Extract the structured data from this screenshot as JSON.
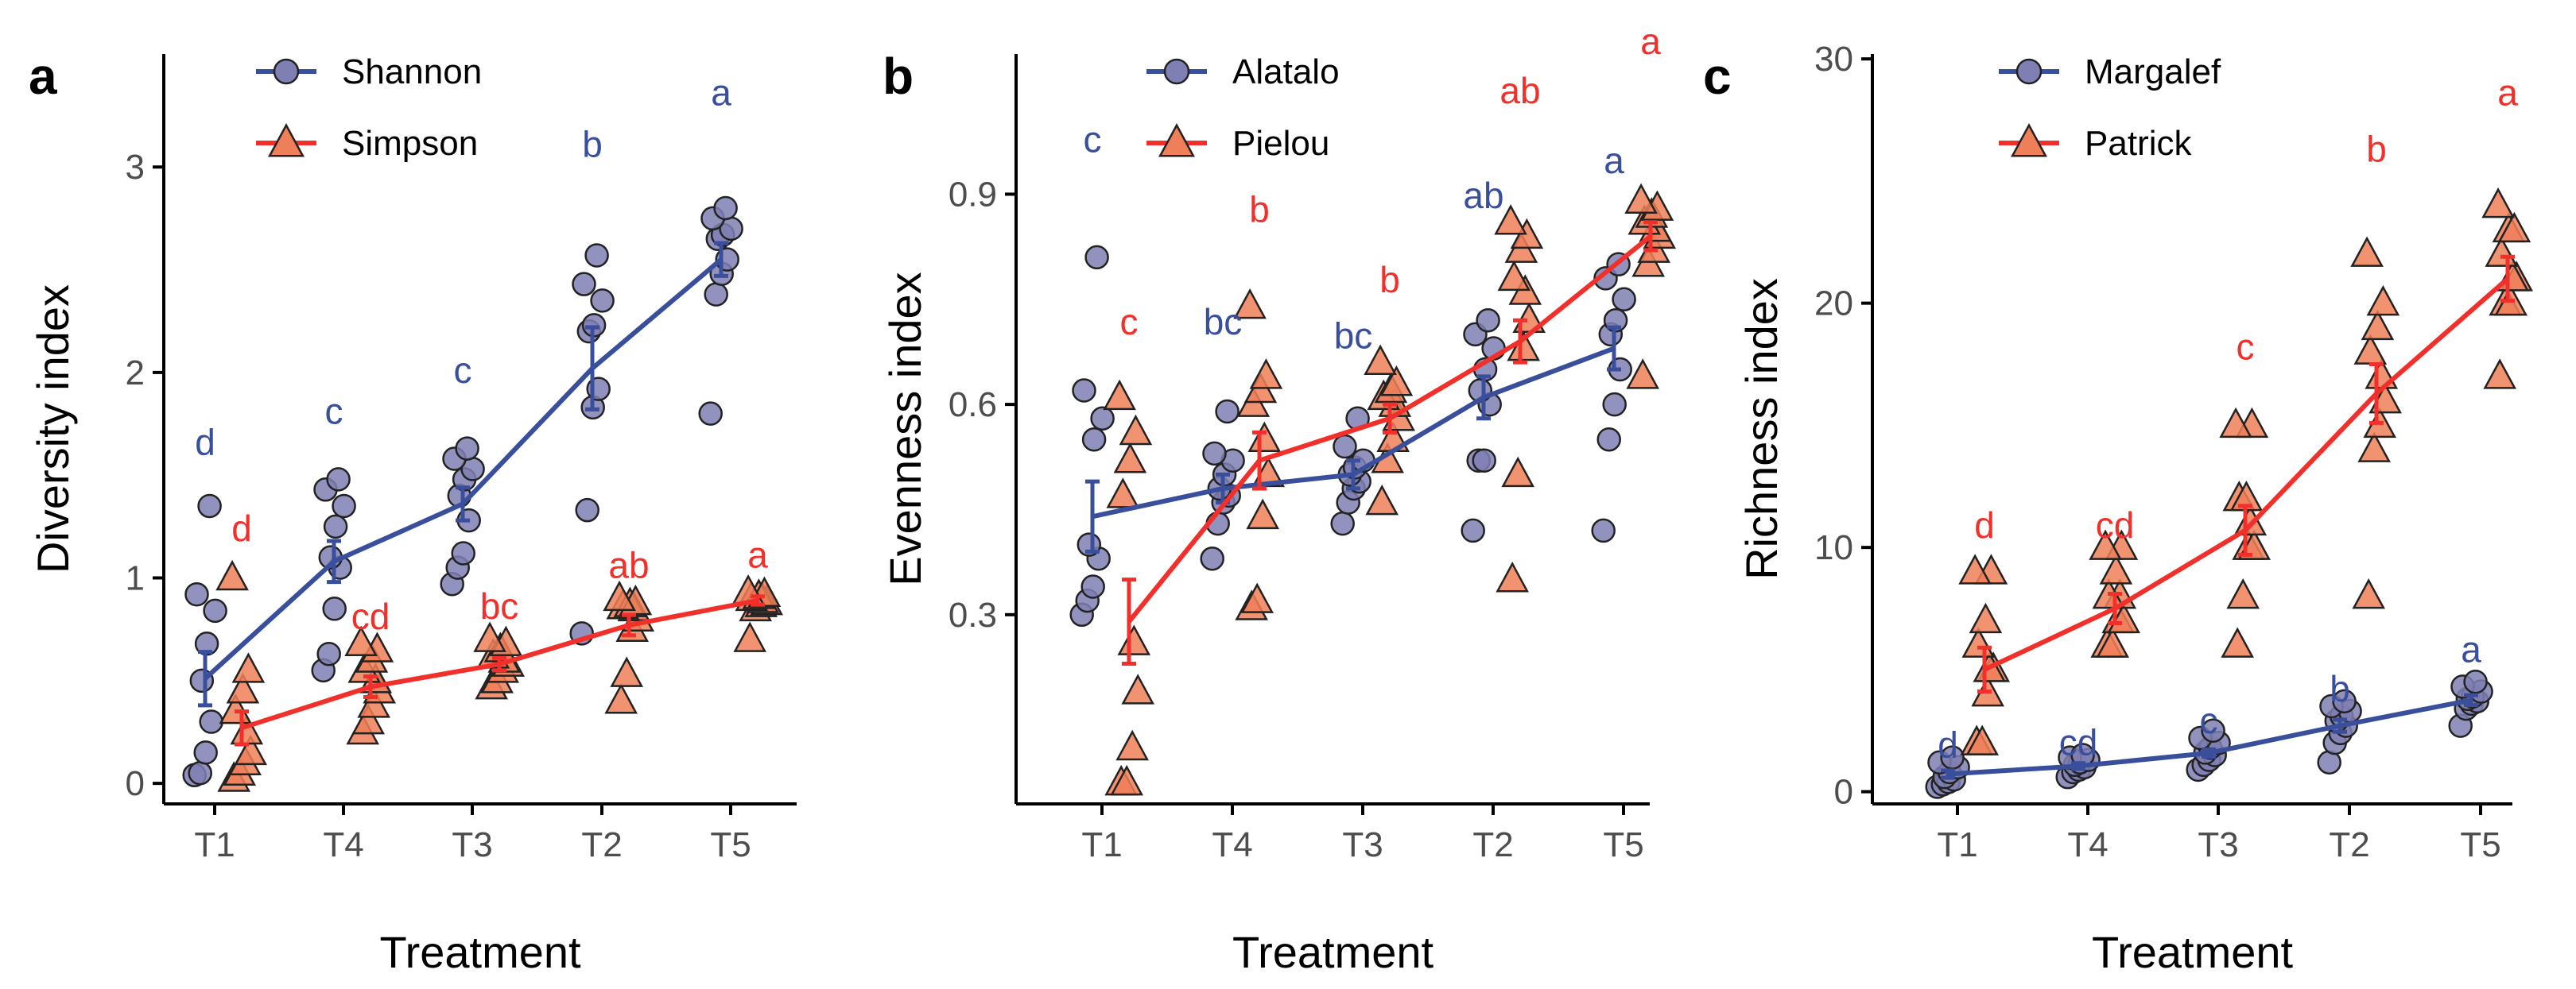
{
  "colors": {
    "blue": "#3a4f9c",
    "blue_point": "#7f7fb4",
    "red": "#f2302b",
    "red_point": "#ef7f58",
    "axis": "#000000",
    "tick_text": "#4d4d4d"
  },
  "chart_data": [
    {
      "type": "line",
      "panel": "a",
      "xlabel": "Treatment",
      "ylabel": "Diversity index",
      "categories": [
        "T1",
        "T4",
        "T3",
        "T2",
        "T5"
      ],
      "ylim": [
        -0.1,
        3.55
      ],
      "yticks": [
        0,
        1,
        2,
        3
      ],
      "series": [
        {
          "name": "Shannon",
          "marker": "circle",
          "color_key": "blue",
          "means": [
            0.51,
            1.08,
            1.36,
            2.02,
            2.55
          ],
          "errors": [
            0.13,
            0.1,
            0.08,
            0.2,
            0.08
          ],
          "letters": [
            "d",
            "c",
            "c",
            "b",
            "a"
          ],
          "letter_y": [
            1.6,
            1.75,
            1.95,
            3.05,
            3.3
          ],
          "points": [
            [
              0.04,
              0.05,
              0.15,
              0.3,
              0.5,
              0.68,
              0.84,
              0.92,
              1.35
            ],
            [
              0.55,
              0.63,
              0.85,
              1.05,
              1.1,
              1.25,
              1.35,
              1.43,
              1.48
            ],
            [
              0.97,
              1.05,
              1.12,
              1.28,
              1.4,
              1.48,
              1.53,
              1.58,
              1.63
            ],
            [
              0.73,
              1.33,
              1.83,
              1.92,
              2.2,
              2.23,
              2.35,
              2.43,
              2.57
            ],
            [
              1.8,
              2.38,
              2.48,
              2.55,
              2.65,
              2.67,
              2.7,
              2.75,
              2.8
            ]
          ]
        },
        {
          "name": "Simpson",
          "marker": "triangle",
          "color_key": "red",
          "means": [
            0.27,
            0.47,
            0.58,
            0.77,
            0.89
          ],
          "errors": [
            0.08,
            0.05,
            0.03,
            0.05,
            0.02
          ],
          "letters": [
            "d",
            "cd",
            "bc",
            "ab",
            "a"
          ],
          "letter_y": [
            1.18,
            0.75,
            0.8,
            1.0,
            1.05
          ],
          "points": [
            [
              0.02,
              0.05,
              0.1,
              0.15,
              0.25,
              0.35,
              0.45,
              0.55,
              1.0
            ],
            [
              0.25,
              0.3,
              0.38,
              0.45,
              0.5,
              0.55,
              0.6,
              0.65,
              0.68
            ],
            [
              0.47,
              0.5,
              0.55,
              0.58,
              0.6,
              0.62,
              0.65,
              0.68,
              0.7
            ],
            [
              0.4,
              0.53,
              0.75,
              0.8,
              0.85,
              0.86,
              0.87,
              0.88,
              0.9
            ],
            [
              0.7,
              0.85,
              0.87,
              0.88,
              0.89,
              0.9,
              0.91,
              0.92,
              0.93
            ]
          ]
        }
      ]
    },
    {
      "type": "line",
      "panel": "b",
      "xlabel": "Treatment",
      "ylabel": "Evenness index",
      "categories": [
        "T1",
        "T4",
        "T3",
        "T2",
        "T5"
      ],
      "ylim": [
        0.03,
        1.1
      ],
      "yticks": [
        0.3,
        0.6,
        0.9
      ],
      "ytick_labels": [
        "0.3",
        "0.6",
        "0.9"
      ],
      "series": [
        {
          "name": "Alatalo",
          "marker": "circle",
          "color_key": "blue",
          "means": [
            0.44,
            0.48,
            0.5,
            0.61,
            0.68
          ],
          "errors": [
            0.05,
            0.02,
            0.02,
            0.03,
            0.03
          ],
          "letters": [
            "c",
            "bc",
            "bc",
            "ab",
            "a"
          ],
          "letter_y": [
            0.96,
            0.7,
            0.68,
            0.88,
            0.93
          ],
          "points": [
            [
              0.3,
              0.32,
              0.34,
              0.38,
              0.4,
              0.55,
              0.58,
              0.62,
              0.81
            ],
            [
              0.38,
              0.43,
              0.46,
              0.47,
              0.48,
              0.5,
              0.52,
              0.53,
              0.59
            ],
            [
              0.43,
              0.46,
              0.48,
              0.49,
              0.5,
              0.51,
              0.52,
              0.54,
              0.58
            ],
            [
              0.42,
              0.52,
              0.52,
              0.6,
              0.62,
              0.65,
              0.68,
              0.7,
              0.72
            ],
            [
              0.42,
              0.55,
              0.6,
              0.65,
              0.7,
              0.72,
              0.75,
              0.78,
              0.8
            ]
          ]
        },
        {
          "name": "Pielou",
          "marker": "triangle",
          "color_key": "red",
          "means": [
            0.29,
            0.52,
            0.58,
            0.69,
            0.84
          ],
          "errors": [
            0.06,
            0.04,
            0.02,
            0.03,
            0.02
          ],
          "letters": [
            "c",
            "b",
            "b",
            "ab",
            "a"
          ],
          "letter_y": [
            0.7,
            0.86,
            0.76,
            1.03,
            1.1
          ],
          "points": [
            [
              0.06,
              0.06,
              0.11,
              0.19,
              0.26,
              0.47,
              0.52,
              0.56,
              0.61
            ],
            [
              0.31,
              0.32,
              0.44,
              0.5,
              0.55,
              0.6,
              0.62,
              0.64,
              0.74
            ],
            [
              0.46,
              0.52,
              0.55,
              0.58,
              0.6,
              0.61,
              0.62,
              0.63,
              0.66
            ],
            [
              0.35,
              0.5,
              0.68,
              0.72,
              0.76,
              0.78,
              0.82,
              0.84,
              0.86
            ],
            [
              0.64,
              0.8,
              0.82,
              0.84,
              0.85,
              0.86,
              0.87,
              0.88,
              0.89
            ]
          ]
        }
      ]
    },
    {
      "type": "line",
      "panel": "c",
      "xlabel": "Treatment",
      "ylabel": "Richness index",
      "categories": [
        "T1",
        "T4",
        "T3",
        "T2",
        "T5"
      ],
      "ylim": [
        -0.5,
        30.2
      ],
      "yticks": [
        0,
        10,
        20,
        30
      ],
      "series": [
        {
          "name": "Margalef",
          "marker": "circle",
          "color_key": "blue",
          "means": [
            0.72,
            1.05,
            1.58,
            2.7,
            3.75
          ],
          "errors": [
            0.15,
            0.12,
            0.15,
            0.25,
            0.2
          ],
          "letters": [
            "d",
            "cd",
            "c",
            "b",
            "a"
          ],
          "letter_y": [
            1.4,
            1.5,
            2.4,
            3.7,
            5.3
          ],
          "points": [
            [
              0.2,
              0.3,
              0.4,
              0.5,
              0.6,
              0.8,
              1.0,
              1.2,
              1.4
            ],
            [
              0.6,
              0.8,
              0.9,
              1.0,
              1.1,
              1.2,
              1.3,
              1.4,
              1.5
            ],
            [
              0.9,
              1.1,
              1.3,
              1.5,
              1.6,
              1.8,
              2.0,
              2.2,
              2.5
            ],
            [
              1.2,
              2.0,
              2.4,
              2.7,
              2.9,
              3.1,
              3.3,
              3.5,
              3.7
            ],
            [
              2.7,
              3.4,
              3.6,
              3.7,
              3.8,
              3.9,
              4.1,
              4.3,
              4.5
            ]
          ]
        },
        {
          "name": "Patrick",
          "marker": "triangle",
          "color_key": "red",
          "means": [
            5.0,
            7.5,
            10.7,
            16.3,
            21.0
          ],
          "errors": [
            0.9,
            0.6,
            1.0,
            1.2,
            0.9
          ],
          "letters": [
            "d",
            "cd",
            "c",
            "b",
            "a"
          ],
          "letter_y": [
            10.4,
            10.4,
            17.7,
            25.8,
            28.1
          ],
          "points": [
            [
              2.0,
              2.0,
              4.0,
              5.0,
              5.0,
              6.0,
              7.0,
              9.0,
              9.0
            ],
            [
              6.0,
              6.0,
              7.0,
              7.0,
              8.0,
              8.0,
              9.0,
              10.0,
              10.0
            ],
            [
              6.0,
              8.0,
              10.0,
              10.0,
              11.0,
              12.0,
              12.0,
              15.0,
              15.0
            ],
            [
              8.0,
              14.0,
              15.0,
              16.0,
              17.0,
              18.0,
              19.0,
              20.0,
              22.0
            ],
            [
              17.0,
              20.0,
              20.0,
              21.0,
              21.0,
              22.0,
              23.0,
              23.0,
              24.0
            ]
          ]
        }
      ]
    }
  ]
}
